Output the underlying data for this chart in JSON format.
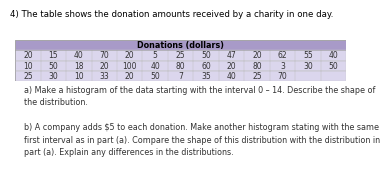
{
  "title_text": "4) The table shows the donation amounts received by a charity in one day.",
  "table_header": "Donations (dollars)",
  "table_rows": [
    [
      "20",
      "15",
      "40",
      "70",
      "20",
      "5",
      "25",
      "50",
      "47",
      "20",
      "62",
      "55",
      "40"
    ],
    [
      "10",
      "50",
      "18",
      "20",
      "100",
      "40",
      "80",
      "60",
      "20",
      "80",
      "3",
      "30",
      "50"
    ],
    [
      "25",
      "30",
      "10",
      "33",
      "20",
      "50",
      "7",
      "35",
      "40",
      "25",
      "70",
      "",
      ""
    ]
  ],
  "part_a": "a) Make a histogram of the data starting with the interval 0 – 14. Describe the shape of\nthe distribution.",
  "part_b": "b) A company adds $5 to each donation. Make another histogram stating with the same\nfirst interval as in part (a). Compare the shape of this distribution with the distribution in\npart (a). Explain any differences in the distributions.",
  "header_bg": "#a89ac8",
  "row_bg": "#dbd6ed",
  "header_text_color": "#000000",
  "cell_text_color": "#333333",
  "background_color": "#ffffff",
  "title_fontsize": 6.2,
  "body_fontsize": 5.8,
  "table_fontsize": 5.5,
  "header_fontsize": 5.8
}
